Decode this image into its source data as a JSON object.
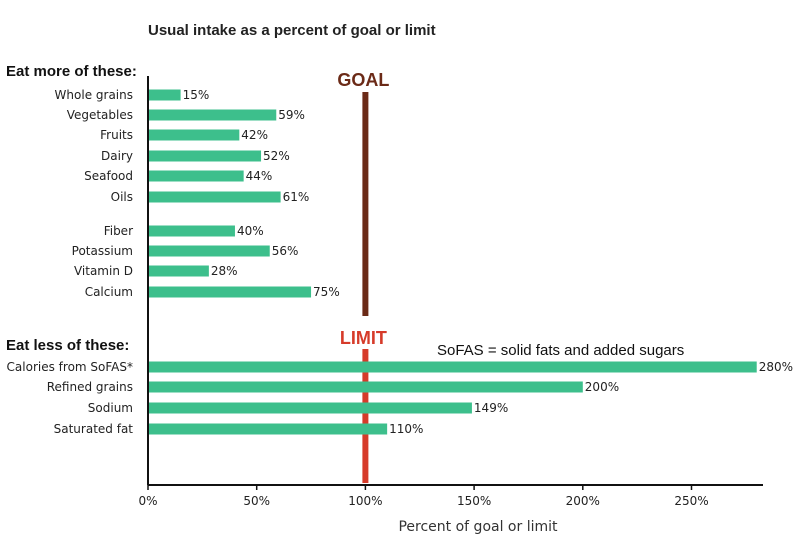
{
  "chart_data": {
    "type": "bar",
    "orientation": "horizontal",
    "title": "Usual intake as a percent of goal or limit",
    "xlabel": "Percent of goal or limit",
    "xlim": [
      0,
      285
    ],
    "xticks": [
      0,
      50,
      100,
      150,
      200,
      250
    ],
    "xtick_labels": [
      "0%",
      "50%",
      "100%",
      "150%",
      "200%",
      "250%"
    ],
    "value_suffix": "%",
    "grid": false,
    "bar_color": "#3dbf8c",
    "goal": {
      "label": "GOAL",
      "value": 100,
      "color": "#6b2a17"
    },
    "limit": {
      "label": "LIMIT",
      "value": 100,
      "color": "#d63b2a"
    },
    "note": "SoFAS = solid fats and added sugars",
    "groups": [
      {
        "label": "Eat more of these:",
        "categories": [
          "Whole grains",
          "Vegetables",
          "Fruits",
          "Dairy",
          "Seafood",
          "Oils"
        ],
        "values": [
          15,
          59,
          42,
          52,
          44,
          61
        ]
      },
      {
        "label": "",
        "categories": [
          "Fiber",
          "Potassium",
          "Vitamin D",
          "Calcium"
        ],
        "values": [
          40,
          56,
          28,
          75
        ]
      },
      {
        "label": "Eat less of these:",
        "categories": [
          "Calories from SoFAS*",
          "Refined grains",
          "Sodium",
          "Saturated fat"
        ],
        "values": [
          280,
          200,
          149,
          110
        ]
      }
    ]
  }
}
